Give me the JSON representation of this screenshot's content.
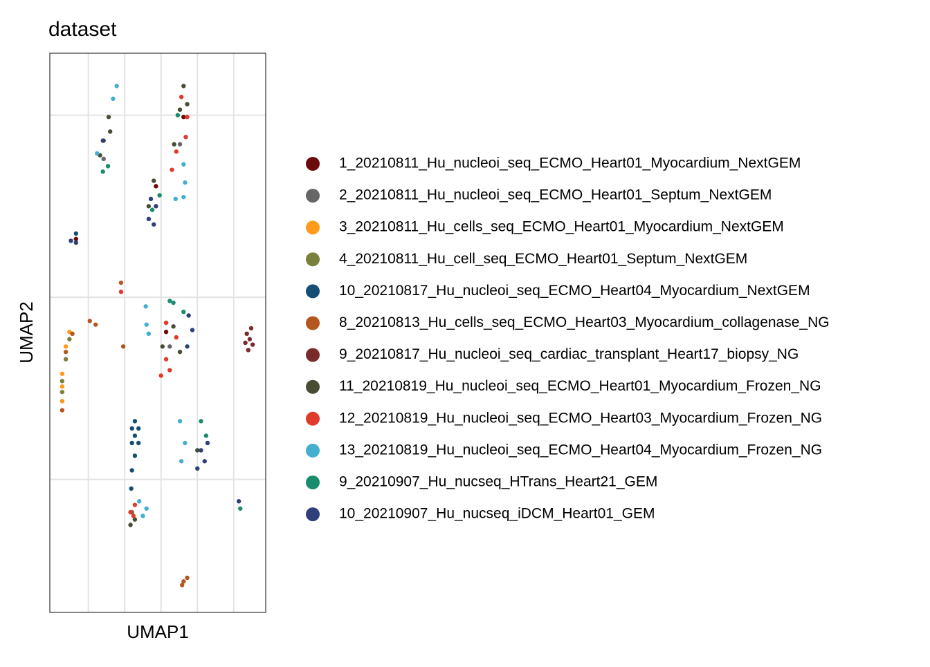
{
  "chart_data": {
    "type": "scatter",
    "title": "dataset",
    "x_label": "UMAP1",
    "y_label": "UMAP2",
    "xlim": [
      -10.3,
      19.4
    ],
    "ylim": [
      -17.3,
      13.4
    ],
    "xticks": [
      -5,
      0,
      5,
      10,
      15
    ],
    "yticks": [
      -10,
      0,
      10
    ],
    "grid": true,
    "show_tick_labels": false,
    "legend": "right",
    "series": [
      {
        "name": "1_20210811_Hu_nucleoi_seq_ECMO_Heart01_Myocardium_NextGEM",
        "color": "#6b0a0a",
        "x": [
          8.1,
          5.7,
          -6.7,
          4.3
        ],
        "values": [
          9.9,
          -1.9,
          3.2,
          6.1
        ]
      },
      {
        "name": "2_20210811_Hu_nucleoi_seq_ECMO_Heart01_Septum_NextGEM",
        "color": "#666666",
        "x": [
          7.6,
          6.2,
          -2.9,
          1.0
        ],
        "values": [
          8.4,
          -2.7,
          7.6,
          -11.8
        ]
      },
      {
        "name": "3_20210811_Hu_cells_seq_ECMO_Heart01_Myocardium_NextGEM",
        "color": "#ff9a1a",
        "x": [
          -8.6,
          -8.6,
          -8.1,
          -7.6,
          -8.6
        ],
        "values": [
          -4.2,
          -4.9,
          -2.7,
          -1.9,
          -5.7
        ]
      },
      {
        "name": "4_20210811_Hu_cell_seq_ECMO_Heart01_Septum_NextGEM",
        "color": "#7a7f3a",
        "x": [
          -8.6,
          -8.1,
          -8.6,
          -7.6
        ],
        "values": [
          -4.6,
          -3.4,
          -5.2,
          -2.3
        ]
      },
      {
        "name": "10_20210817_Hu_nucleoi_seq_ECMO_Heart04_Myocardium_NextGEM",
        "color": "#154e72",
        "x": [
          1.0,
          1.4,
          1.9,
          1.0,
          1.4,
          1.9,
          1.0,
          0.9,
          1.4,
          -6.7
        ],
        "values": [
          -7.2,
          -7.6,
          -8.0,
          -8.0,
          -6.8,
          -7.2,
          -9.5,
          -10.5,
          -8.7,
          3.5
        ]
      },
      {
        "name": "8_20210813_Hu_cells_seq_ECMO_Heart03_Myocardium_collagenase_NG",
        "color": "#b5561f",
        "x": [
          -8.6,
          -8.1,
          -7.2,
          -4.8,
          -4.0,
          -0.2,
          -0.5,
          8.1,
          8.6,
          7.9
        ],
        "values": [
          -6.2,
          -3.0,
          -2.0,
          -1.3,
          -1.5,
          -2.7,
          0.8,
          -15.6,
          -15.4,
          -15.8
        ]
      },
      {
        "name": "9_20210817_Hu_nucleoi_seq_cardiac_transplant_Heart17_biopsy_NG",
        "color": "#7b2a2a",
        "x": [
          16.8,
          17.2,
          17.6,
          16.6,
          17.4,
          17.0
        ],
        "values": [
          -2.0,
          -2.3,
          -2.6,
          -2.5,
          -1.7,
          -2.9
        ]
      },
      {
        "name": "11_20210819_Hu_nucleoi_seq_ECMO_Heart01_Myocardium_Frozen_NG",
        "color": "#484c33",
        "x": [
          -2.2,
          -2.9,
          -3.4,
          -2.0,
          8.1,
          7.6,
          8.6,
          6.8,
          4.0,
          3.3,
          6.7,
          7.6,
          5.2,
          1.4,
          0.8,
          10.0
        ],
        "values": [
          9.9,
          8.6,
          7.8,
          9.1,
          11.6,
          10.3,
          10.6,
          8.4,
          6.4,
          5.0,
          -1.6,
          -3.0,
          -2.7,
          -12.2,
          -12.5,
          -8.4
        ]
      },
      {
        "name": "12_20210819_Hu_nucleoi_seq_ECMO_Heart03_Myocardium_Frozen_NG",
        "color": "#e03a2a",
        "x": [
          7.8,
          8.6,
          7.1,
          6.5,
          8.4,
          5.7,
          6.2,
          5.0,
          7.1,
          5.7,
          0.8,
          1.4,
          1.2,
          -0.5
        ],
        "values": [
          11.0,
          9.9,
          8.0,
          7.0,
          8.8,
          -3.4,
          -4.0,
          -4.3,
          -2.2,
          -1.4,
          -11.8,
          -11.4,
          -12.0,
          0.3
        ]
      },
      {
        "name": "13_20210819_Hu_nucleoi_seq_ECMO_Heart04_Myocardium_Frozen_NG",
        "color": "#45afd0",
        "x": [
          -1.1,
          -1.6,
          -3.8,
          8.1,
          8.3,
          8.1,
          7.0,
          2.9,
          3.0,
          3.3,
          7.6,
          8.3,
          7.8,
          3.0,
          2.5,
          2.0
        ],
        "values": [
          11.6,
          10.9,
          7.9,
          7.3,
          6.3,
          5.5,
          5.4,
          -0.5,
          -1.5,
          -2.0,
          -6.8,
          -8.0,
          -9.0,
          -11.6,
          -12.0,
          -11.2
        ]
      },
      {
        "name": "9_20210907_Hu_nucseq_HTrans_Heart21_GEM",
        "color": "#1a8c6e",
        "x": [
          -3.0,
          -2.3,
          4.8,
          3.8,
          6.7,
          8.1,
          6.2,
          10.5,
          11.2,
          15.9,
          7.3
        ],
        "values": [
          6.9,
          7.2,
          5.6,
          4.8,
          -0.3,
          -0.8,
          -0.2,
          -6.8,
          -7.6,
          -11.6,
          10.0
        ]
      },
      {
        "name": "10_20210907_Hu_nucseq_iDCM_Heart01_GEM",
        "color": "#2e3f7a",
        "x": [
          3.3,
          4.0,
          4.3,
          3.6,
          8.8,
          9.3,
          8.6,
          10.5,
          11.0,
          10.0,
          11.4,
          15.7,
          -3.0,
          -6.7,
          -7.4
        ],
        "values": [
          4.3,
          4.0,
          5.0,
          5.4,
          -1.0,
          -1.8,
          -2.7,
          -8.4,
          -9.0,
          -9.4,
          -8.0,
          -11.2,
          8.6,
          3.0,
          3.1
        ]
      }
    ]
  }
}
